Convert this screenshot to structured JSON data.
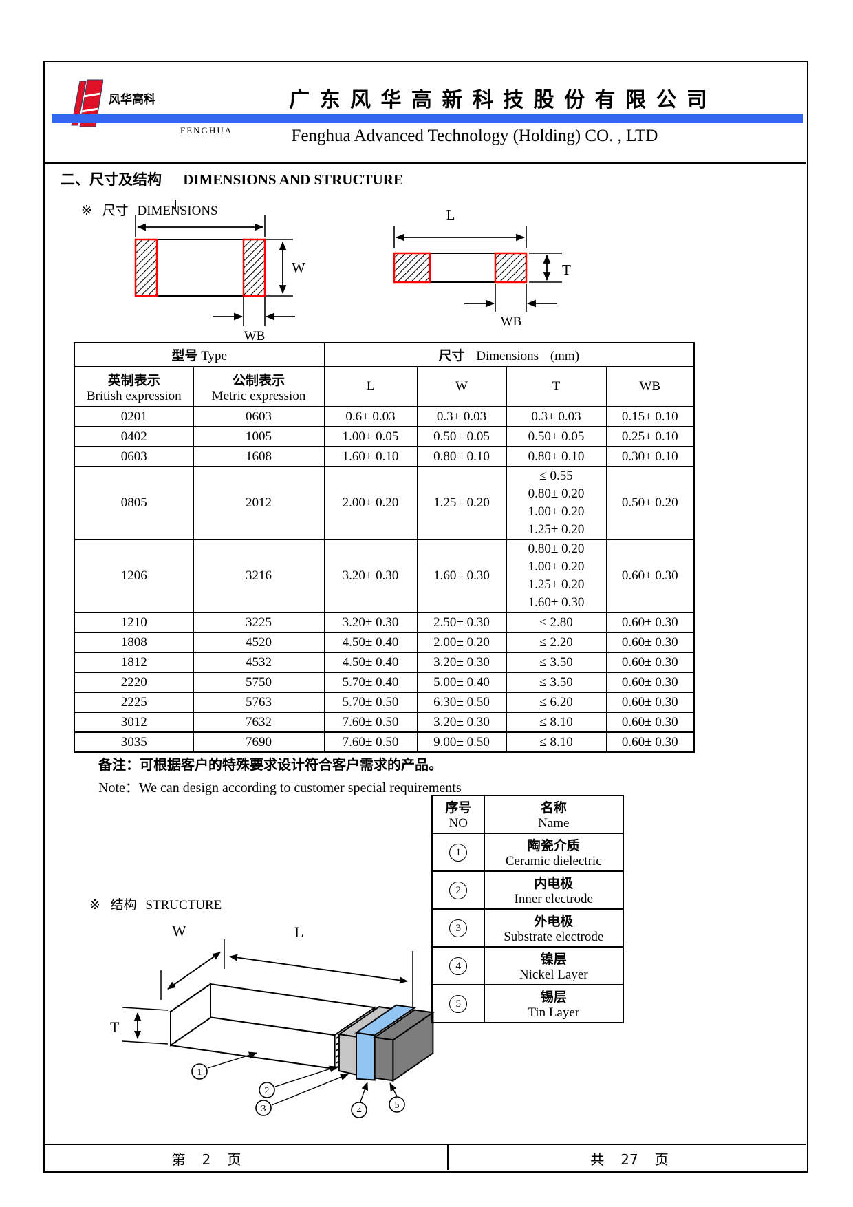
{
  "colors": {
    "accent_blue": "#3366ee",
    "logo_red": "#e01126",
    "terminal_border_red": "#ff0000",
    "layer_gray": "#c6c6c6",
    "layer_blue": "#92c5f2",
    "layer_dark_gray": "#7d7d7d"
  },
  "header": {
    "logo_text": "风华高科",
    "brand_small": "FENGHUA",
    "company_cn": "广 东 风 华 高 新 科 技 股 份 有 限 公 司",
    "company_en": "Fenghua Advanced Technology (Holding) CO. , LTD"
  },
  "section_title": {
    "cn": "二、尺寸及结构",
    "en": "DIMENSIONS AND STRUCTURE"
  },
  "dim_heading": {
    "marker": "※",
    "cn": "尺寸",
    "en": "DIMENSIONS"
  },
  "diagram_labels": {
    "l": "L",
    "w": "W",
    "t": "T",
    "wb": "WB"
  },
  "dim_table": {
    "header": {
      "type_group_cn": "型号",
      "type_group_en": "Type",
      "dims_group_cn": "尺寸",
      "dims_group_en": "Dimensions",
      "dims_unit": "(mm)",
      "col_british_cn": "英制表示",
      "col_british_en": "British expression",
      "col_metric_cn": "公制表示",
      "col_metric_en": "Metric expression",
      "col_l": "L",
      "col_w": "W",
      "col_t": "T",
      "col_wb": "WB"
    },
    "rows": [
      {
        "british": "0201",
        "metric": "0603",
        "l": "0.6± 0.03",
        "w": "0.3± 0.03",
        "t": [
          "0.3± 0.03"
        ],
        "wb": "0.15± 0.10"
      },
      {
        "british": "0402",
        "metric": "1005",
        "l": "1.00± 0.05",
        "w": "0.50± 0.05",
        "t": [
          "0.50± 0.05"
        ],
        "wb": "0.25± 0.10"
      },
      {
        "british": "0603",
        "metric": "1608",
        "l": "1.60± 0.10",
        "w": "0.80± 0.10",
        "t": [
          "0.80± 0.10"
        ],
        "wb": "0.30± 0.10"
      },
      {
        "british": "0805",
        "metric": "2012",
        "l": "2.00± 0.20",
        "w": "1.25± 0.20",
        "t": [
          "≤ 0.55",
          "0.80± 0.20",
          "1.00± 0.20",
          "1.25± 0.20"
        ],
        "wb": "0.50± 0.20"
      },
      {
        "british": "1206",
        "metric": "3216",
        "l": "3.20± 0.30",
        "w": "1.60± 0.30",
        "t": [
          "0.80± 0.20",
          "1.00± 0.20",
          "1.25± 0.20",
          "1.60± 0.30"
        ],
        "wb": "0.60± 0.30"
      },
      {
        "british": "1210",
        "metric": "3225",
        "l": "3.20± 0.30",
        "w": "2.50± 0.30",
        "t": [
          "≤ 2.80"
        ],
        "wb": "0.60± 0.30"
      },
      {
        "british": "1808",
        "metric": "4520",
        "l": "4.50± 0.40",
        "w": "2.00± 0.20",
        "t": [
          "≤ 2.20"
        ],
        "wb": "0.60± 0.30"
      },
      {
        "british": "1812",
        "metric": "4532",
        "l": "4.50± 0.40",
        "w": "3.20± 0.30",
        "t": [
          "≤ 3.50"
        ],
        "wb": "0.60± 0.30"
      },
      {
        "british": "2220",
        "metric": "5750",
        "l": "5.70± 0.40",
        "w": "5.00± 0.40",
        "t": [
          "≤ 3.50"
        ],
        "wb": "0.60± 0.30"
      },
      {
        "british": "2225",
        "metric": "5763",
        "l": "5.70± 0.50",
        "w": "6.30± 0.50",
        "t": [
          "≤ 6.20"
        ],
        "wb": "0.60± 0.30"
      },
      {
        "british": "3012",
        "metric": "7632",
        "l": "7.60± 0.50",
        "w": "3.20± 0.30",
        "t": [
          "≤ 8.10"
        ],
        "wb": "0.60± 0.30"
      },
      {
        "british": "3035",
        "metric": "7690",
        "l": "7.60± 0.50",
        "w": "9.00± 0.50",
        "t": [
          "≤ 8.10"
        ],
        "wb": "0.60± 0.30"
      }
    ]
  },
  "notes": {
    "cn": "备注：可根据客户的特殊要求设计符合客户需求的产品。",
    "en": "Note：We can design according to customer special requirements"
  },
  "structure_heading": {
    "marker": "※",
    "cn": "结构",
    "en": "STRUCTURE"
  },
  "structure_table": {
    "header": {
      "no_cn": "序号",
      "no_en": "NO",
      "name_cn": "名称",
      "name_en": "Name"
    },
    "rows": [
      {
        "no_circled": "①",
        "no_digit": "1",
        "name_cn": "陶瓷介质",
        "name_en": "Ceramic  dielectric"
      },
      {
        "no_circled": "②",
        "no_digit": "2",
        "name_cn": "内电极",
        "name_en": "Inner  electrode"
      },
      {
        "no_circled": "③",
        "no_digit": "3",
        "name_cn": "外电极",
        "name_en": "Substrate  electrode"
      },
      {
        "no_circled": "④",
        "no_digit": "4",
        "name_cn": "镍层",
        "name_en": "Nickel Layer"
      },
      {
        "no_circled": "⑤",
        "no_digit": "5",
        "name_cn": "锡层",
        "name_en": "Tin Layer"
      }
    ]
  },
  "structure_callouts": [
    "1",
    "2",
    "3",
    "4",
    "5"
  ],
  "footer": {
    "page": {
      "prefix": "第",
      "number": "2",
      "suffix": "页"
    },
    "total": {
      "prefix": "共",
      "number": "27",
      "suffix": "页"
    }
  }
}
